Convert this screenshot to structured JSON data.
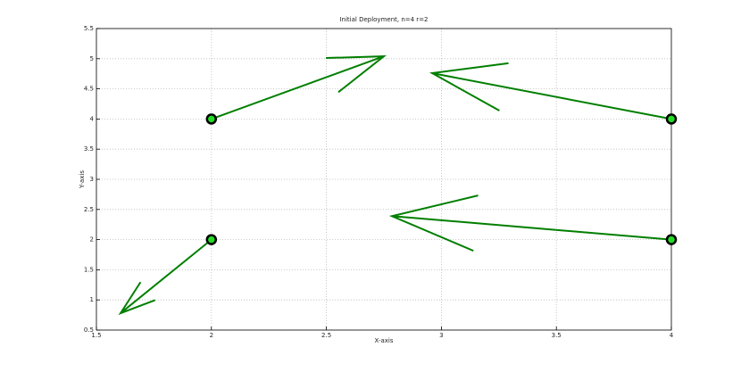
{
  "chart_data": {
    "type": "quiver",
    "title": "Initial Deployment, n=4 r=2",
    "x_label": "X-axis",
    "y_label": "Y-axis",
    "x": [
      2,
      4,
      2,
      4
    ],
    "y": [
      4,
      4,
      2,
      2
    ],
    "u": [
      0.75,
      -1.04,
      -0.395,
      -1.215
    ],
    "v": [
      1.04,
      0.76,
      -1.22,
      0.39
    ],
    "arrow_color": "#007f00",
    "marker_color": "#22dd22",
    "marker_edge_color": "#000000",
    "xlim": [
      1.5,
      4
    ],
    "xticks": [
      1.5,
      2,
      2.5,
      3,
      3.5,
      4
    ],
    "ylim": [
      0.5,
      5.5
    ],
    "yticks": [
      0.5,
      1,
      1.5,
      2,
      2.5,
      3,
      3.5,
      4,
      4.5,
      5,
      5.5
    ],
    "grid": true
  }
}
